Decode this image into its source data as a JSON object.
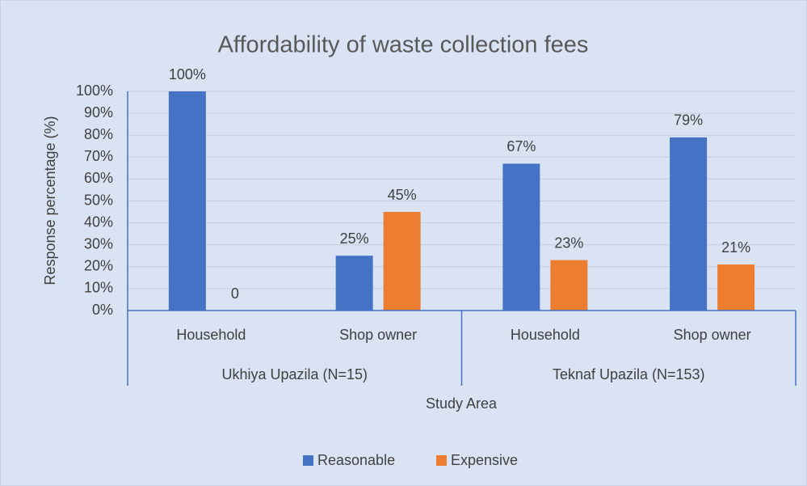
{
  "chart_data": {
    "type": "bar",
    "title": "Affordability of waste collection fees",
    "y_label": "Response percentage (%)",
    "x_label": "Study Area",
    "categories": [
      "Household",
      "Shop owner",
      "Household",
      "Shop owner"
    ],
    "groups": [
      "Ukhiya Upazila (N=15)",
      "Teknaf Upazila (N=153)"
    ],
    "series": [
      {
        "name": "Reasonable",
        "color": "#4472c4",
        "values": [
          100,
          25,
          67,
          79
        ],
        "value_labels": [
          "100%",
          "25%",
          "67%",
          "79%"
        ]
      },
      {
        "name": "Expensive",
        "color": "#ed7d31",
        "values": [
          0,
          45,
          23,
          21
        ],
        "value_labels": [
          "0",
          "45%",
          "23%",
          "21%"
        ]
      }
    ],
    "ylim": [
      0,
      100
    ],
    "yticks": [
      {
        "value": 0,
        "label": "0%"
      },
      {
        "value": 10,
        "label": "10%"
      },
      {
        "value": 20,
        "label": "20%"
      },
      {
        "value": 30,
        "label": "30%"
      },
      {
        "value": 40,
        "label": "40%"
      },
      {
        "value": 50,
        "label": "50%"
      },
      {
        "value": 60,
        "label": "60%"
      },
      {
        "value": 70,
        "label": "70%"
      },
      {
        "value": 80,
        "label": "80%"
      },
      {
        "value": 90,
        "label": "90%"
      },
      {
        "value": 100,
        "label": "100%"
      }
    ],
    "grid": true,
    "legend": "bottom"
  }
}
